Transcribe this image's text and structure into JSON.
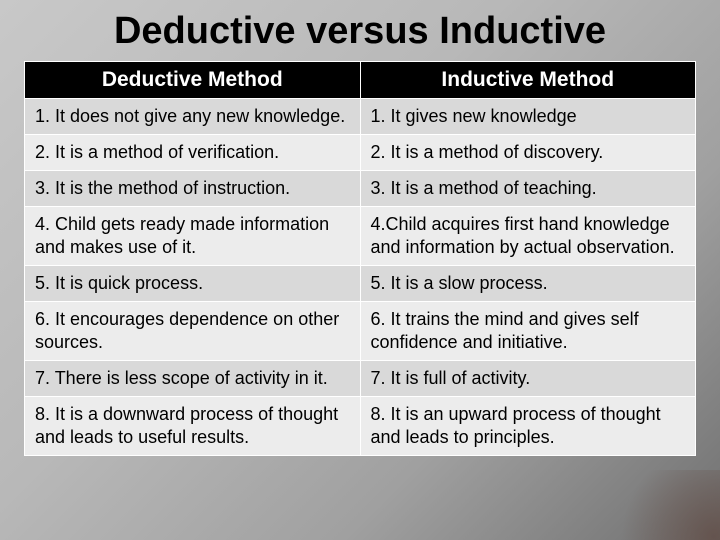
{
  "title": "Deductive versus Inductive",
  "table": {
    "columns": [
      "Deductive Method",
      "Inductive Method"
    ],
    "rows": [
      [
        "1. It does not give any new knowledge.",
        "1. It gives new knowledge"
      ],
      [
        "2. It is a method of verification.",
        "2. It is a method of discovery."
      ],
      [
        "3. It is the method of instruction.",
        "3. It is a method of teaching."
      ],
      [
        "4. Child gets ready made information and makes use of it.",
        "4.Child acquires first hand knowledge and information by actual observation."
      ],
      [
        "5. It is quick process.",
        "5. It is a slow process."
      ],
      [
        "6. It encourages dependence on other sources.",
        "6. It trains the mind and gives self confidence and initiative."
      ],
      [
        "7. There is less scope of activity in it.",
        "7. It is full of activity."
      ],
      [
        "8. It is a downward process of thought and leads to useful results.",
        "8. It is an upward process of thought and leads to principles."
      ]
    ],
    "header_bg": "#000000",
    "header_fg": "#ffffff",
    "band_a_bg": "#d9d9d9",
    "band_b_bg": "#ececec",
    "border_color": "#ffffff",
    "title_fontsize": 38,
    "header_fontsize": 21,
    "cell_fontsize": 18
  },
  "background_gradient": [
    "#c8c8c8",
    "#b8b8b8",
    "#a0a0a0",
    "#707070"
  ]
}
